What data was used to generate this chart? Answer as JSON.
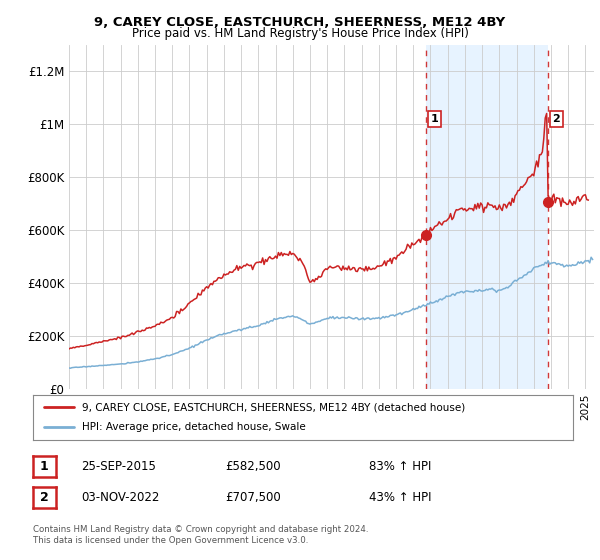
{
  "title": "9, CAREY CLOSE, EASTCHURCH, SHEERNESS, ME12 4BY",
  "subtitle": "Price paid vs. HM Land Registry's House Price Index (HPI)",
  "legend_line1": "9, CAREY CLOSE, EASTCHURCH, SHEERNESS, ME12 4BY (detached house)",
  "legend_line2": "HPI: Average price, detached house, Swale",
  "footer": "Contains HM Land Registry data © Crown copyright and database right 2024.\nThis data is licensed under the Open Government Licence v3.0.",
  "sale1_date": "25-SEP-2015",
  "sale1_price": "£582,500",
  "sale1_hpi": "83% ↑ HPI",
  "sale2_date": "03-NOV-2022",
  "sale2_price": "£707,500",
  "sale2_hpi": "43% ↑ HPI",
  "hpi_color": "#7aafd4",
  "price_color": "#cc2222",
  "vline_color": "#cc2222",
  "shade_color": "#ddeeff",
  "background_color": "#ffffff",
  "grid_color": "#cccccc",
  "ylim": [
    0,
    1300000
  ],
  "yticks": [
    0,
    200000,
    400000,
    600000,
    800000,
    1000000,
    1200000
  ],
  "ytick_labels": [
    "£0",
    "£200K",
    "£400K",
    "£600K",
    "£800K",
    "£1M",
    "£1.2M"
  ],
  "sale1_x": 2015.75,
  "sale1_y": 582500,
  "sale2_x": 2022.84,
  "sale2_y": 707500,
  "xlim_left": 1995.0,
  "xlim_right": 2025.5
}
